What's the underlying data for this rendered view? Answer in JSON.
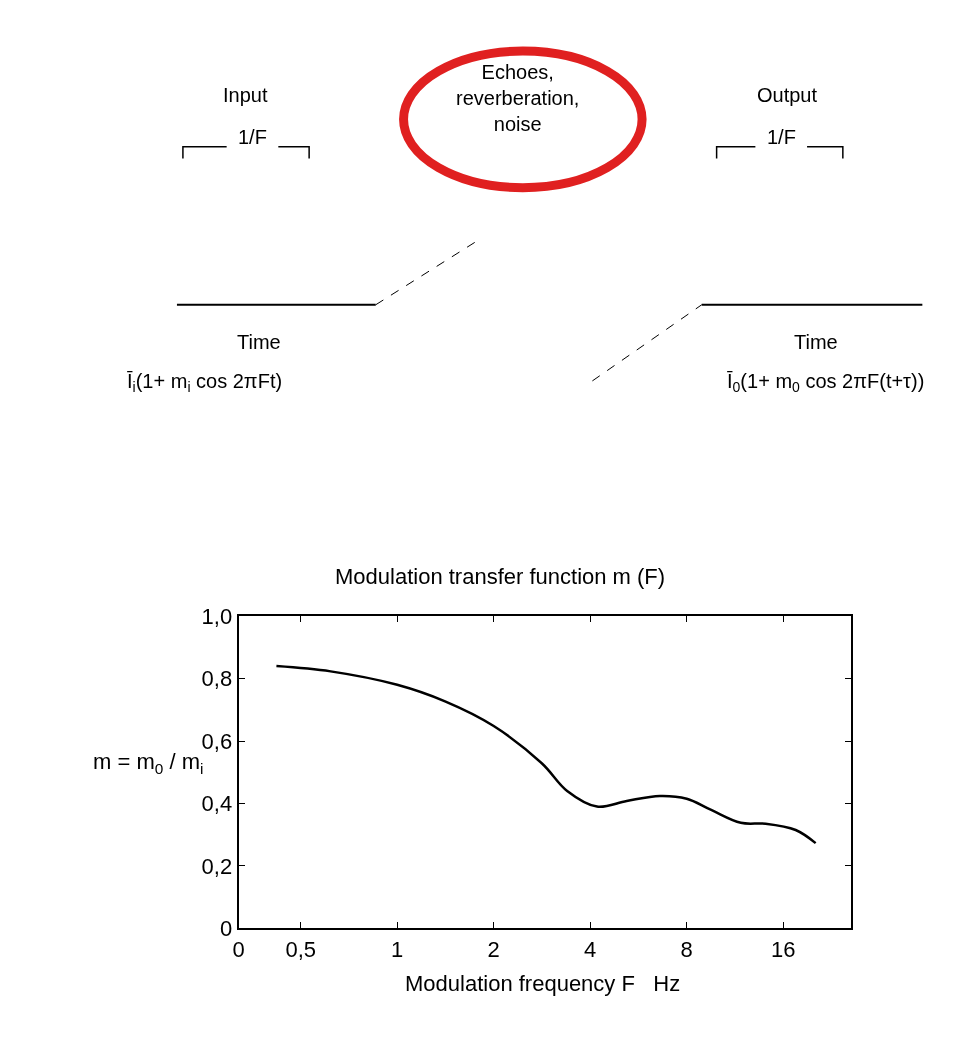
{
  "chart_data": {
    "type": "line",
    "title": "Modulation transfer function m (F)",
    "xlabel": "Modulation frequency F   Hz",
    "ylabel": "m = m$_{0}$ / m$_{i}$",
    "log": "x",
    "marker": "none",
    "line_style": "solid",
    "xlim": [
      0.32,
      26
    ],
    "xticks": [
      {
        "value": 0.32,
        "label": "0"
      },
      {
        "value": 0.5,
        "label": "0,5"
      },
      1,
      2,
      4,
      8,
      16
    ],
    "ylim": [
      0,
      1
    ],
    "yticks": [
      {
        "value": 0,
        "label": "0"
      },
      {
        "value": 0.2,
        "label": "0,2"
      },
      {
        "value": 0.4,
        "label": "0,4"
      },
      {
        "value": 0.6,
        "label": "0,6"
      },
      {
        "value": 0.8,
        "label": "0,8"
      },
      {
        "value": 1,
        "label": "1,0"
      }
    ],
    "series": [
      {
        "color": "#000000",
        "x": [
          0.42,
          0.62,
          1,
          1.41,
          2,
          2.83,
          3.39,
          4.2,
          5.2,
          6.6,
          8,
          9.5,
          11.8,
          14.1,
          17.5,
          20.2
        ],
        "values": [
          0.84,
          0.823,
          0.78,
          0.727,
          0.648,
          0.528,
          0.44,
          0.39,
          0.408,
          0.424,
          0.415,
          0.38,
          0.338,
          0.335,
          0.315,
          0.273
        ]
      }
    ],
    "annotations": [
      "Input",
      "1/F",
      "Time",
      "Ī$_{i}$(1+ m$_{i}$ cos 2πFt)",
      "Echoes,\nreverberation,\nnoise",
      "Output",
      "1/F",
      "Time",
      "Ī$_{0}$(1+ m$_{0}$ cos 2πF(t+τ))"
    ]
  }
}
